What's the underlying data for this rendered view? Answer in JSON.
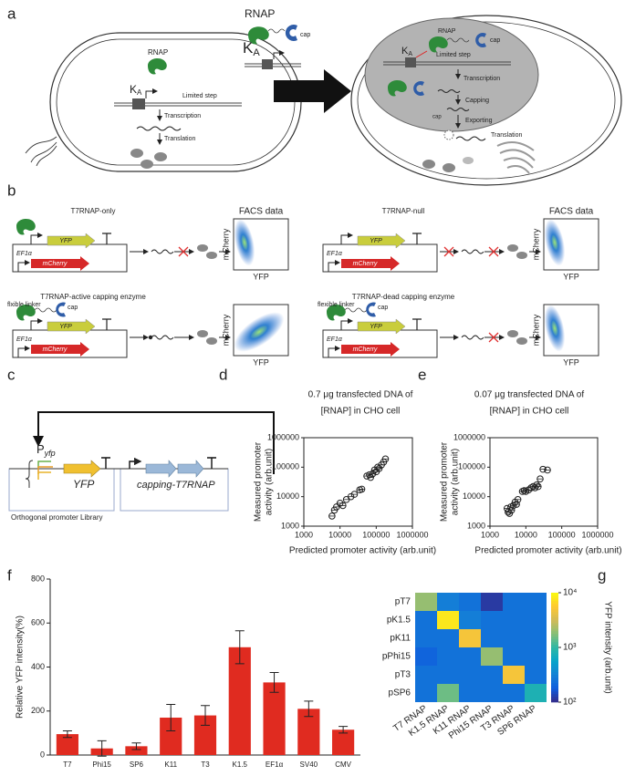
{
  "panel_labels": [
    "a",
    "b",
    "c",
    "d",
    "e",
    "f",
    "g"
  ],
  "diagram_a": {
    "left": {
      "rnap": "RNAP",
      "ka": "K",
      "ka_sub": "A",
      "limited": "Limited step",
      "transcription": "Transcription",
      "translation": "Translation"
    },
    "middle": {
      "rnap": "RNAP",
      "cap": "cap",
      "ka": "K",
      "ka_sub": "A"
    },
    "right": {
      "rnap": "RNAP",
      "cap": "cap",
      "ka": "K",
      "ka_sub": "A",
      "limited": "Limited step",
      "transcription": "Transcription",
      "capping": "Capping",
      "cap2": "cap",
      "exporting": "Exporting",
      "translation": "Translation"
    }
  },
  "diagram_b": {
    "constructs": [
      {
        "title": "T7RNAP-only",
        "facs_title": "FACS data",
        "promoter": "EF1α",
        "gene": "YFP",
        "reporter": "mCherry",
        "facs_x": "YFP",
        "facs_y": "mCherry"
      },
      {
        "title": "T7RNAP-null",
        "facs_title": "FACS data",
        "promoter": "EF1α",
        "gene": "YFP",
        "reporter": "mCherry",
        "facs_x": "YFP",
        "facs_y": "mCherry"
      },
      {
        "title": "T7RNAP-active capping enzyme",
        "linker": "flxible linker",
        "cap": "cap",
        "promoter": "EF1α",
        "gene": "YFP",
        "reporter": "mCherry",
        "facs_x": "YFP",
        "facs_y": "mCherry"
      },
      {
        "title": "T7RNAP-dead capping enzyme",
        "linker": "flexible linker",
        "cap": "cap",
        "promoter": "EF1α",
        "gene": "YFP",
        "reporter": "mCherry",
        "facs_x": "YFP",
        "facs_y": "mCherry"
      }
    ]
  },
  "diagram_c": {
    "promoter": "P",
    "promoter_sub": "yfp",
    "gene": "YFP",
    "library": "Orthogonal promoter Library",
    "enzyme": "capping-T7RNAP"
  },
  "chart_data": [
    {
      "type": "scatter",
      "title": [
        "0.7 μg transfected DNA of",
        "[RNAP] in CHO cell"
      ],
      "ylabel": [
        "Measured promoter",
        "activity (arb.unit)"
      ],
      "xlabel": "Predicted promoter activity (arb.unit)",
      "x": [
        6000,
        7000,
        8000,
        10000,
        12000,
        15000,
        20000,
        25000,
        35000,
        40000,
        55000,
        65000,
        70000,
        80000,
        90000,
        100000,
        110000,
        120000,
        140000,
        160000,
        180000
      ],
      "y": [
        2200,
        3500,
        4500,
        6000,
        5000,
        8000,
        10000,
        12000,
        17000,
        18000,
        50000,
        55000,
        45000,
        60000,
        80000,
        70000,
        100000,
        90000,
        120000,
        150000,
        190000
      ],
      "xlim": [
        1000,
        1000000
      ],
      "ylim": [
        1000,
        1000000
      ],
      "xticks": [
        1000,
        10000,
        100000,
        1000000
      ],
      "yticks": [
        1000,
        10000,
        100000,
        1000000
      ],
      "log_x": true,
      "log_y": true,
      "color": "#222222"
    },
    {
      "type": "scatter",
      "title": [
        "0.07 μg transfected DNA of",
        "[RNAP] in CHO cell"
      ],
      "ylabel": [
        "Measured promoter",
        "activity (arb.unit)"
      ],
      "xlabel": "Predicted promoter activity (arb.unit)",
      "x": [
        3000,
        3200,
        3500,
        3800,
        4000,
        4500,
        5000,
        5500,
        6000,
        8000,
        9000,
        10000,
        12000,
        14000,
        16000,
        18000,
        20000,
        22000,
        25000,
        30000,
        40000
      ],
      "y": [
        4000,
        3000,
        2700,
        4500,
        3500,
        5000,
        6500,
        5500,
        8000,
        15000,
        16000,
        15000,
        17000,
        20000,
        22000,
        20000,
        25000,
        22000,
        40000,
        85000,
        80000
      ],
      "xlim": [
        1000,
        1000000
      ],
      "ylim": [
        1000,
        1000000
      ],
      "xticks": [
        1000,
        10000,
        100000,
        1000000
      ],
      "yticks": [
        1000,
        10000,
        100000,
        1000000
      ],
      "log_x": true,
      "log_y": true,
      "color": "#222222"
    },
    {
      "type": "bar",
      "ylabel": "Relative YFP intensity(%)",
      "categories": [
        "T7",
        "Phi15",
        "SP6",
        "K11",
        "T3",
        "K1.5",
        "EF1α",
        "SV40",
        "CMV"
      ],
      "values": [
        95,
        30,
        40,
        170,
        180,
        490,
        330,
        210,
        115
      ],
      "errors": [
        15,
        35,
        15,
        60,
        45,
        75,
        45,
        35,
        15
      ],
      "ylim": [
        0,
        800
      ],
      "yticks": [
        0,
        200,
        400,
        600,
        800
      ],
      "color": "#e02b20"
    },
    {
      "type": "heatmap",
      "rows": [
        "pT7",
        "pK1.5",
        "pK11",
        "pPhi15",
        "pT3",
        "pSP6"
      ],
      "columns": [
        "T7 RNAP",
        "K1.5 RNAP",
        "K11 RNAP",
        "Phi15 RNAP",
        "T3 RNAP",
        "SP6 RNAP"
      ],
      "values": [
        [
          2000,
          300,
          250,
          120,
          250,
          250
        ],
        [
          250,
          8000,
          300,
          250,
          250,
          250
        ],
        [
          250,
          250,
          5000,
          250,
          250,
          250
        ],
        [
          200,
          250,
          250,
          2000,
          250,
          250
        ],
        [
          250,
          250,
          250,
          250,
          5000,
          250
        ],
        [
          250,
          1500,
          250,
          250,
          250,
          800
        ]
      ],
      "zlim": [
        100,
        10000
      ],
      "log_z": true,
      "zticks": [
        {
          "value": 100,
          "label": "10²"
        },
        {
          "value": 1000,
          "label": "10³"
        },
        {
          "value": 10000,
          "label": "10⁴"
        }
      ],
      "colorbar_label": "YFP intensity (arb.unit)",
      "colormap": [
        "#352a87",
        "#0f5cdd",
        "#1481d6",
        "#06a4ca",
        "#2eb7a4",
        "#87bf77",
        "#d1bb59",
        "#fec832",
        "#f9fb0e"
      ]
    }
  ]
}
